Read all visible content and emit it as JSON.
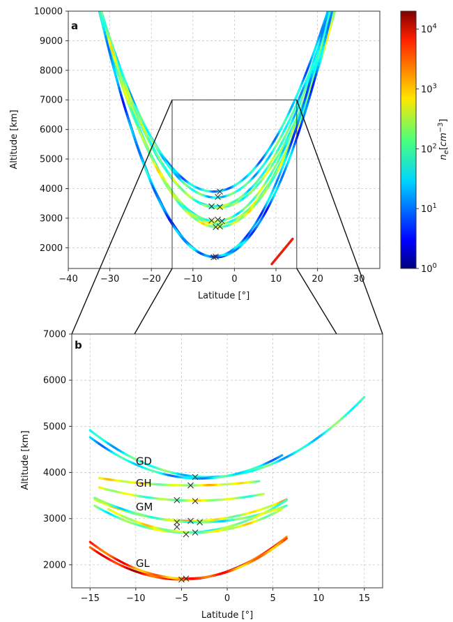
{
  "chart_data": [
    {
      "panel": "a",
      "type": "line",
      "xlabel": "Latitude [°]",
      "ylabel": "Altitude [km]",
      "xlim": [
        -40,
        35
      ],
      "ylim": [
        1300,
        10000
      ],
      "xticks": [
        -40,
        -30,
        -20,
        -10,
        0,
        10,
        20,
        30
      ],
      "yticks": [
        2000,
        3000,
        4000,
        5000,
        6000,
        7000,
        8000,
        9000,
        10000
      ],
      "grid": true,
      "zoom_box": {
        "lat_range": [
          -15,
          15
        ],
        "alt_range": [
          1300,
          7000
        ]
      },
      "series": [
        {
          "min_lat": -5.0,
          "min_alt": 3900,
          "curvature": 8.1,
          "lat_range": [
            -38,
            25
          ],
          "log_ne": 1.4
        },
        {
          "min_lat": -4.5,
          "min_alt": 3700,
          "curvature": 8.3,
          "lat_range": [
            -36,
            26
          ],
          "log_ne": 1.7
        },
        {
          "min_lat": -4.5,
          "min_alt": 3400,
          "curvature": 8.5,
          "lat_range": [
            -33,
            27
          ],
          "log_ne": 1.9
        },
        {
          "min_lat": -4.0,
          "min_alt": 3350,
          "curvature": 8.4,
          "lat_range": [
            -33,
            28
          ],
          "log_ne": 2.1
        },
        {
          "min_lat": -4.5,
          "min_alt": 2900,
          "curvature": 9.0,
          "lat_range": [
            -30,
            30
          ],
          "log_ne": 2.0
        },
        {
          "min_lat": -4.0,
          "min_alt": 2800,
          "curvature": 9.1,
          "lat_range": [
            -30,
            30
          ],
          "log_ne": 2.2
        },
        {
          "min_lat": -4.0,
          "min_alt": 2700,
          "curvature": 9.2,
          "lat_range": [
            -31,
            31
          ],
          "log_ne": 2.3
        },
        {
          "min_lat": -4.5,
          "min_alt": 1680,
          "curvature": 10.6,
          "lat_range": [
            -34,
            32
          ],
          "log_ne": 1.1
        },
        {
          "min_lat": -5.0,
          "min_alt": 1700,
          "curvature": 11.0,
          "lat_range": [
            -35,
            33
          ],
          "log_ne": 1.2
        }
      ],
      "markers": [
        {
          "lat": -3.5,
          "alt": 3900
        },
        {
          "lat": -4.0,
          "alt": 3720
        },
        {
          "lat": -5.5,
          "alt": 3400
        },
        {
          "lat": -3.5,
          "alt": 3380
        },
        {
          "lat": -5.5,
          "alt": 2920
        },
        {
          "lat": -4.0,
          "alt": 2950
        },
        {
          "lat": -3.0,
          "alt": 2900
        },
        {
          "lat": -4.5,
          "alt": 2700
        },
        {
          "lat": -3.5,
          "alt": 2720
        },
        {
          "lat": -5.0,
          "alt": 1680
        },
        {
          "lat": -4.5,
          "alt": 1700
        }
      ],
      "red_segment": {
        "lat_range": [
          9,
          14
        ],
        "alt_range": [
          1450,
          2300
        ]
      }
    },
    {
      "panel": "b",
      "type": "line",
      "xlabel": "Latitude [°]",
      "ylabel": "Altitude [km]",
      "xlim": [
        -17,
        17
      ],
      "ylim": [
        1500,
        7000
      ],
      "xticks": [
        -15,
        -10,
        -5,
        0,
        5,
        10,
        15
      ],
      "yticks": [
        2000,
        3000,
        4000,
        5000,
        6000,
        7000
      ],
      "grid": true,
      "series": [
        {
          "group": "GD",
          "min_lat": -2.0,
          "min_alt": 3900,
          "curvature": 6.0,
          "lat_range": [
            -15,
            15
          ],
          "log_ne": 1.7
        },
        {
          "group": "GD",
          "min_lat": -3.0,
          "min_alt": 3870,
          "curvature": 6.2,
          "lat_range": [
            -15,
            6
          ],
          "log_ne": 1.5
        },
        {
          "group": "GH",
          "min_lat": -4.0,
          "min_alt": 3720,
          "curvature": 1.6,
          "lat_range": [
            -14,
            3.5
          ],
          "log_ne": 2.5
        },
        {
          "group": "GH",
          "min_lat": -3.5,
          "min_alt": 3390,
          "curvature": 2.6,
          "lat_range": [
            -14,
            4
          ],
          "log_ne": 2.3
        },
        {
          "group": "GM",
          "min_lat": -4.0,
          "min_alt": 2950,
          "curvature": 4.2,
          "lat_range": [
            -14.5,
            6.5
          ],
          "log_ne": 2.6
        },
        {
          "group": "GM",
          "min_lat": -3.0,
          "min_alt": 2920,
          "curvature": 4.0,
          "lat_range": [
            -14.5,
            6.5
          ],
          "log_ne": 2.0
        },
        {
          "group": "GM",
          "min_lat": -4.5,
          "min_alt": 2700,
          "curvature": 5.8,
          "lat_range": [
            -14.5,
            6.5
          ],
          "log_ne": 2.1
        },
        {
          "group": "GM",
          "min_lat": -3.5,
          "min_alt": 2700,
          "curvature": 5.6,
          "lat_range": [
            -13,
            6
          ],
          "log_ne": 2.4
        },
        {
          "group": "GL",
          "min_lat": -5.0,
          "min_alt": 1680,
          "curvature": 7.0,
          "lat_range": [
            -15,
            6.5
          ],
          "log_ne": 3.6
        },
        {
          "group": "GL",
          "min_lat": -4.5,
          "min_alt": 1700,
          "curvature": 7.2,
          "lat_range": [
            -15,
            6.5
          ],
          "log_ne": 3.3
        }
      ],
      "markers": [
        {
          "lat": -3.5,
          "alt": 3900
        },
        {
          "lat": -4.0,
          "alt": 3720
        },
        {
          "lat": -5.5,
          "alt": 3400
        },
        {
          "lat": -3.5,
          "alt": 3380
        },
        {
          "lat": -5.5,
          "alt": 2920
        },
        {
          "lat": -4.0,
          "alt": 2950
        },
        {
          "lat": -3.0,
          "alt": 2920
        },
        {
          "lat": -5.5,
          "alt": 2820
        },
        {
          "lat": -4.5,
          "alt": 2660
        },
        {
          "lat": -3.5,
          "alt": 2700
        },
        {
          "lat": -5.0,
          "alt": 1680
        },
        {
          "lat": -4.5,
          "alt": 1700
        }
      ],
      "labels": [
        {
          "text": "GD",
          "lat": -10.0,
          "alt": 4170
        },
        {
          "text": "GH",
          "lat": -10.0,
          "alt": 3690
        },
        {
          "text": "GM",
          "lat": -10.0,
          "alt": 3180
        },
        {
          "text": "GL",
          "lat": -10.0,
          "alt": 1950
        }
      ]
    }
  ],
  "colorbar": {
    "label": "n_e[cm^-3]",
    "log_range": [
      0,
      4.3
    ],
    "ticks": [
      {
        "base": "10",
        "exp": "0",
        "value": 0
      },
      {
        "base": "10",
        "exp": "1",
        "value": 1
      },
      {
        "base": "10",
        "exp": "2",
        "value": 2
      },
      {
        "base": "10",
        "exp": "3",
        "value": 3
      },
      {
        "base": "10",
        "exp": "4",
        "value": 4
      }
    ]
  },
  "panel_letters": {
    "a": "a",
    "b": "b"
  }
}
